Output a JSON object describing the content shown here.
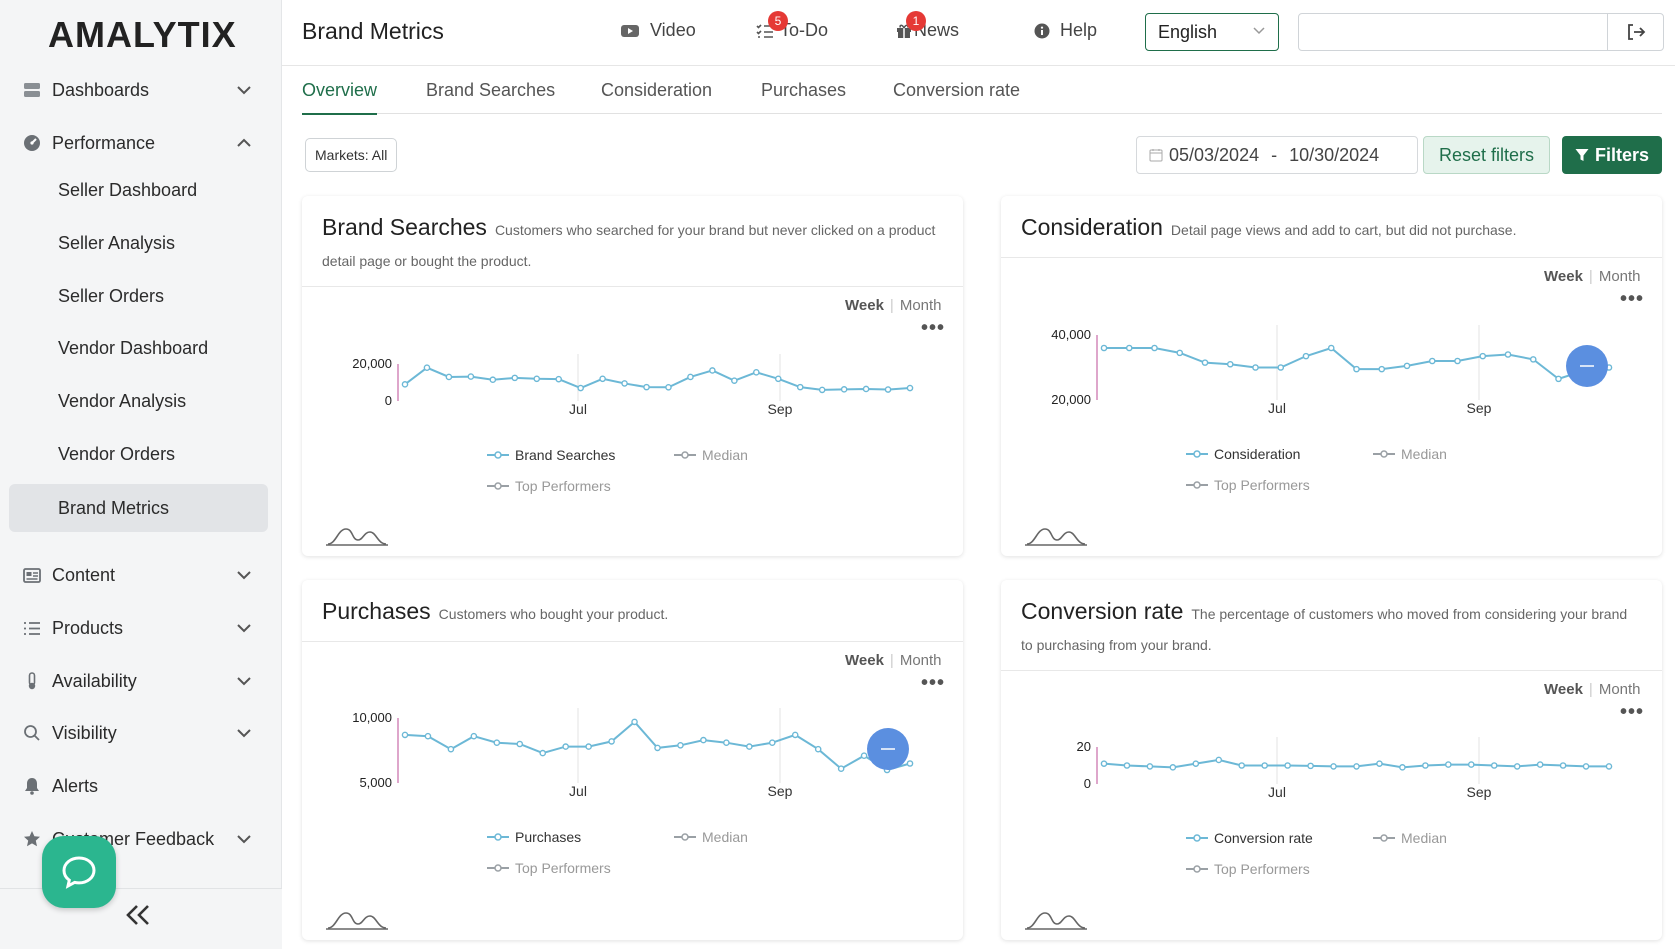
{
  "app": {
    "logo": "AMALYTIX"
  },
  "sidebar": {
    "items": [
      {
        "label": "Dashboards"
      },
      {
        "label": "Performance"
      },
      {
        "label": "Content"
      },
      {
        "label": "Products"
      },
      {
        "label": "Availability"
      },
      {
        "label": "Visibility"
      },
      {
        "label": "Alerts"
      },
      {
        "label": "Customer Feedback"
      }
    ],
    "performance_sub": [
      {
        "label": "Seller Dashboard"
      },
      {
        "label": "Seller Analysis"
      },
      {
        "label": "Seller Orders"
      },
      {
        "label": "Vendor Dashboard"
      },
      {
        "label": "Vendor Analysis"
      },
      {
        "label": "Vendor Orders"
      },
      {
        "label": "Brand Metrics"
      }
    ]
  },
  "header": {
    "title": "Brand Metrics",
    "links": [
      {
        "label": "Video"
      },
      {
        "label": "To-Do",
        "badge": "5"
      },
      {
        "label": "News",
        "badge": "1"
      },
      {
        "label": "Help"
      }
    ],
    "language": "English"
  },
  "tabs": [
    {
      "label": "Overview"
    },
    {
      "label": "Brand Searches"
    },
    {
      "label": "Consideration"
    },
    {
      "label": "Purchases"
    },
    {
      "label": "Conversion rate"
    }
  ],
  "filters": {
    "markets": "Markets: All",
    "date_from": "05/03/2024",
    "date_sep": "-",
    "date_to": "10/30/2024",
    "reset_label": "Reset filters",
    "filters_label": "Filters"
  },
  "period_toggle": {
    "week": "Week",
    "sep": "|",
    "month": "Month"
  },
  "colors": {
    "accent": "#1f6e4a",
    "series": "#6cb8d6",
    "median": "#9aa0a5",
    "marker": "#5b8fe0"
  },
  "cards": [
    {
      "title": "Brand Searches",
      "description": "Customers who searched for your brand but never clicked on a product detail page or bought the product.",
      "legend": [
        "Brand Searches",
        "Median",
        "Top Performers"
      ]
    },
    {
      "title": "Consideration",
      "description": "Detail page views and add to cart, but did not purchase.",
      "legend": [
        "Consideration",
        "Median",
        "Top Performers"
      ]
    },
    {
      "title": "Purchases",
      "description": "Customers who bought your product.",
      "legend": [
        "Purchases",
        "Median",
        "Top Performers"
      ]
    },
    {
      "title": "Conversion rate",
      "description": "The percentage of customers who moved from considering your brand to purchasing from your brand.",
      "legend": [
        "Conversion rate",
        "Median",
        "Top Performers"
      ]
    }
  ],
  "chart_data": [
    {
      "type": "line",
      "title": "Brand Searches",
      "x_ticks": [
        "Jul",
        "Sep"
      ],
      "y_ticks": [
        "20,000",
        "0"
      ],
      "ylim": [
        0,
        20000
      ],
      "series": [
        {
          "name": "Brand Searches",
          "values": [
            9000,
            18000,
            13000,
            13200,
            11500,
            12500,
            12000,
            11800,
            7000,
            12000,
            9500,
            7500,
            7400,
            13000,
            16500,
            11000,
            15500,
            12000,
            7500,
            6000,
            6300,
            6500,
            6200,
            7000
          ]
        }
      ]
    },
    {
      "type": "line",
      "title": "Consideration",
      "x_ticks": [
        "Jul",
        "Sep"
      ],
      "y_ticks": [
        "40,000",
        "20,000"
      ],
      "ylim": [
        20000,
        40000
      ],
      "series": [
        {
          "name": "Consideration",
          "values": [
            36000,
            36000,
            36000,
            34500,
            31500,
            31000,
            30000,
            30000,
            33500,
            36000,
            29500,
            29500,
            30500,
            32000,
            32000,
            33500,
            34000,
            32500,
            26500,
            29000,
            30000
          ]
        }
      ]
    },
    {
      "type": "line",
      "title": "Purchases",
      "x_ticks": [
        "Jul",
        "Sep"
      ],
      "y_ticks": [
        "10,000",
        "5,000"
      ],
      "ylim": [
        5000,
        10000
      ],
      "series": [
        {
          "name": "Purchases",
          "values": [
            8700,
            8600,
            7600,
            8600,
            8100,
            8000,
            7300,
            7800,
            7800,
            8200,
            9700,
            7700,
            7900,
            8300,
            8100,
            7800,
            8100,
            8700,
            7600,
            6100,
            7100,
            6000,
            6500
          ]
        }
      ]
    },
    {
      "type": "line",
      "title": "Conversion rate",
      "x_ticks": [
        "Jul",
        "Sep"
      ],
      "y_ticks": [
        "20",
        "0"
      ],
      "ylim": [
        0,
        20
      ],
      "series": [
        {
          "name": "Conversion rate",
          "values": [
            11,
            10,
            9.5,
            9,
            11,
            13,
            10,
            10,
            10,
            9.8,
            9.5,
            9.5,
            11,
            9,
            10,
            10.5,
            10.5,
            10,
            9.5,
            10.5,
            10,
            9.5,
            9.5
          ]
        }
      ]
    }
  ]
}
